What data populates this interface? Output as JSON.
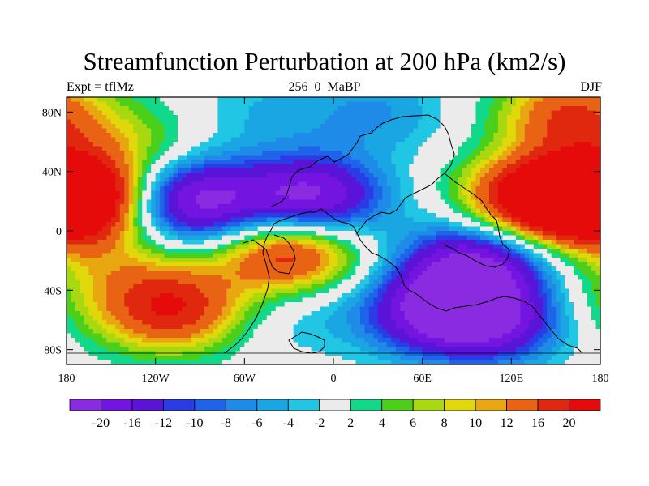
{
  "chart_data": {
    "type": "heatmap",
    "title": "Streamfunction Perturbation at 200 hPa (km2/s)",
    "subtitle_left": "Expt = tflMz",
    "subtitle_center": "256_0_MaBP",
    "subtitle_right": "DJF",
    "x_range": [
      -180,
      180
    ],
    "y_range": [
      -90,
      90
    ],
    "x_ticks": [
      {
        "value": -180,
        "label": "180"
      },
      {
        "value": -120,
        "label": "120W"
      },
      {
        "value": -60,
        "label": "60W"
      },
      {
        "value": 0,
        "label": "0"
      },
      {
        "value": 60,
        "label": "60E"
      },
      {
        "value": 120,
        "label": "120E"
      },
      {
        "value": 180,
        "label": "180"
      }
    ],
    "y_ticks": [
      {
        "value": 80,
        "label": "80N"
      },
      {
        "value": 40,
        "label": "40N"
      },
      {
        "value": 0,
        "label": "0"
      },
      {
        "value": -40,
        "label": "40S"
      },
      {
        "value": -80,
        "label": "80S"
      }
    ],
    "colorbar": {
      "levels": [
        "-20",
        "-16",
        "-12",
        "-10",
        "-8",
        "-6",
        "-4",
        "-2",
        "2",
        "4",
        "6",
        "8",
        "10",
        "12",
        "16",
        "20"
      ],
      "colors": [
        "#8a2be2",
        "#7414e0",
        "#5a14d8",
        "#2a3ce6",
        "#1e64e8",
        "#1f8be8",
        "#19a6e2",
        "#20c6e3",
        "#ebebeb",
        "#12d98a",
        "#4ccf1a",
        "#a8d810",
        "#e0d80a",
        "#e8a710",
        "#e86414",
        "#e0280e",
        "#e60b0b"
      ]
    },
    "features": [
      {
        "lon": -95,
        "lat": 20,
        "value": -22
      },
      {
        "lon": -15,
        "lat": 22,
        "value": -22
      },
      {
        "lon": 95,
        "lat": -22,
        "value": -20
      },
      {
        "lon": 70,
        "lat": -55,
        "value": -20
      },
      {
        "lon": 115,
        "lat": -60,
        "value": -16
      },
      {
        "lon": -20,
        "lat": -55,
        "value": -4
      },
      {
        "lon": 30,
        "lat": 80,
        "value": -6
      },
      {
        "lon": -45,
        "lat": 80,
        "value": -4
      },
      {
        "lon": -172,
        "lat": 22,
        "value": 20
      },
      {
        "lon": 135,
        "lat": 22,
        "value": 22
      },
      {
        "lon": 175,
        "lat": 22,
        "value": 18
      },
      {
        "lon": -30,
        "lat": -15,
        "value": 20
      },
      {
        "lon": -110,
        "lat": -52,
        "value": 20
      },
      {
        "lon": 160,
        "lat": 78,
        "value": 16
      },
      {
        "lon": -135,
        "lat": 58,
        "value": 6
      },
      {
        "lon": 160,
        "lat": -52,
        "value": 4
      },
      {
        "lon": -150,
        "lat": -20,
        "value": 6
      }
    ]
  }
}
